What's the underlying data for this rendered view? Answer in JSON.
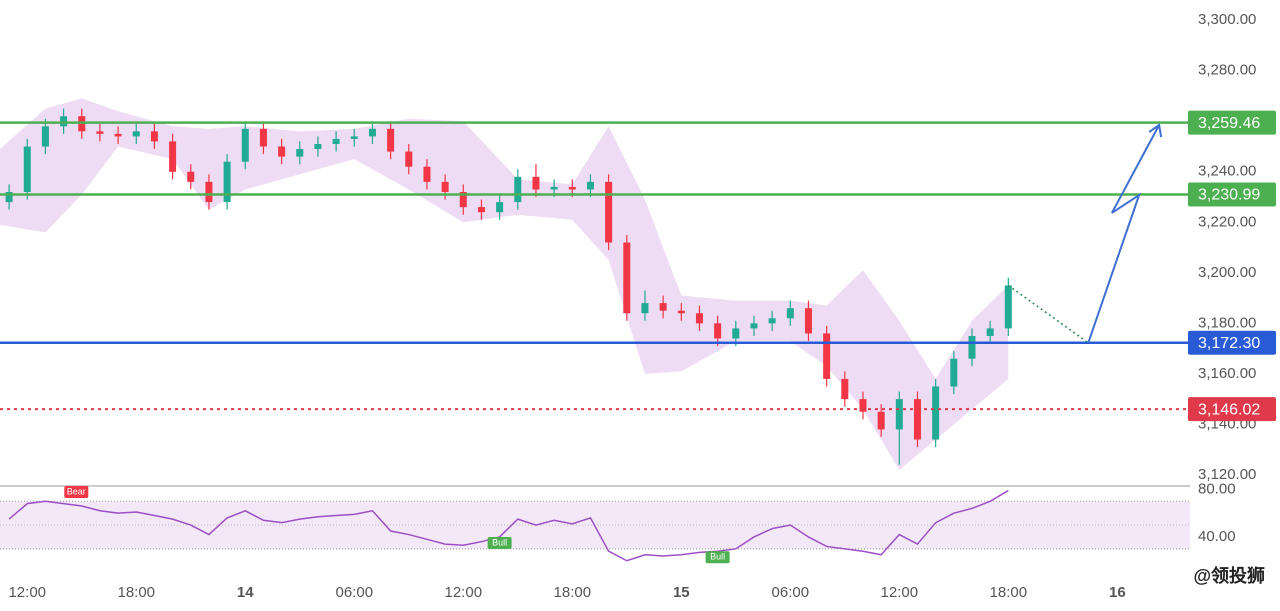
{
  "chart_data": {
    "type": "candlestick",
    "xlim": [
      10.5,
      76
    ],
    "xticks": [
      {
        "value": 12,
        "label": "12:00"
      },
      {
        "value": 18,
        "label": "18:00"
      },
      {
        "value": 24,
        "label": "14"
      },
      {
        "value": 30,
        "label": "06:00"
      },
      {
        "value": 36,
        "label": "12:00"
      },
      {
        "value": 42,
        "label": "18:00"
      },
      {
        "value": 48,
        "label": "15"
      },
      {
        "value": 54,
        "label": "06:00"
      },
      {
        "value": 60,
        "label": "12:00"
      },
      {
        "value": 66,
        "label": "18:00"
      },
      {
        "value": 72,
        "label": "16"
      }
    ],
    "ylim": [
      3116,
      3308
    ],
    "yticks": [
      {
        "value": 3120,
        "label": "3,120.00"
      },
      {
        "value": 3140,
        "label": "3,140.00"
      },
      {
        "value": 3160,
        "label": "3,160.00"
      },
      {
        "value": 3180,
        "label": "3,180.00"
      },
      {
        "value": 3200,
        "label": "3,200.00"
      },
      {
        "value": 3220,
        "label": "3,220.00"
      },
      {
        "value": 3240,
        "label": "3,240.00"
      },
      {
        "value": 3260,
        "label": "3,260.00"
      },
      {
        "value": 3280,
        "label": "3,280.00"
      },
      {
        "value": 3300,
        "label": "3,300.00"
      }
    ],
    "x": [
      11,
      12,
      13,
      14,
      15,
      16,
      17,
      18,
      19,
      20,
      21,
      22,
      23,
      24,
      25,
      26,
      27,
      28,
      29,
      30,
      31,
      32,
      33,
      34,
      35,
      36,
      37,
      38,
      39,
      40,
      41,
      42,
      43,
      44,
      45,
      46,
      47,
      48,
      49,
      50,
      51,
      52,
      53,
      54,
      55,
      56,
      57,
      58,
      59,
      60,
      61,
      62,
      63,
      64,
      65,
      66
    ],
    "open": [
      3228,
      3232,
      3250,
      3258,
      3262,
      3256,
      3255,
      3254,
      3256,
      3252,
      3240,
      3236,
      3228,
      3244,
      3257,
      3250,
      3246,
      3249,
      3251,
      3253,
      3254,
      3257,
      3248,
      3242,
      3236,
      3232,
      3226,
      3224,
      3228,
      3238,
      3233,
      3234,
      3233,
      3236,
      3212,
      3184,
      3188,
      3185,
      3184,
      3180,
      3174,
      3178,
      3180,
      3182,
      3186,
      3176,
      3158,
      3150,
      3145,
      3138,
      3150,
      3134,
      3155,
      3166,
      3175,
      3178
    ],
    "high": [
      3235,
      3253,
      3261,
      3265,
      3265,
      3259,
      3258,
      3259,
      3259,
      3255,
      3243,
      3239,
      3247,
      3260,
      3260,
      3253,
      3252,
      3254,
      3256,
      3257,
      3260,
      3260,
      3251,
      3245,
      3239,
      3235,
      3229,
      3231,
      3241,
      3243,
      3237,
      3237,
      3239,
      3239,
      3215,
      3193,
      3191,
      3188,
      3187,
      3183,
      3181,
      3183,
      3185,
      3189,
      3189,
      3179,
      3161,
      3153,
      3148,
      3153,
      3153,
      3158,
      3169,
      3178,
      3181,
      3198
    ],
    "low": [
      3225,
      3229,
      3247,
      3255,
      3253,
      3252,
      3251,
      3251,
      3249,
      3237,
      3233,
      3225,
      3225,
      3241,
      3247,
      3243,
      3243,
      3246,
      3248,
      3250,
      3251,
      3245,
      3239,
      3233,
      3229,
      3223,
      3221,
      3221,
      3225,
      3230,
      3230,
      3230,
      3230,
      3209,
      3181,
      3181,
      3182,
      3181,
      3177,
      3171,
      3171,
      3175,
      3177,
      3179,
      3173,
      3155,
      3147,
      3142,
      3135,
      3124,
      3131,
      3131,
      3152,
      3163,
      3172,
      3175
    ],
    "close": [
      3232,
      3250,
      3258,
      3262,
      3256,
      3255,
      3254,
      3256,
      3252,
      3240,
      3236,
      3228,
      3244,
      3257,
      3250,
      3246,
      3249,
      3251,
      3253,
      3254,
      3257,
      3248,
      3242,
      3236,
      3232,
      3226,
      3224,
      3228,
      3238,
      3233,
      3234,
      3233,
      3236,
      3212,
      3184,
      3188,
      3185,
      3184,
      3180,
      3174,
      3178,
      3180,
      3182,
      3186,
      3176,
      3158,
      3150,
      3145,
      3138,
      3150,
      3134,
      3155,
      3166,
      3175,
      3178,
      3195
    ],
    "up_color": "#22ab94",
    "down_color": "#f23645",
    "band": {
      "color": "#ead2f1",
      "x": [
        10.5,
        13,
        15,
        17,
        20,
        22,
        24,
        27,
        30,
        33,
        36,
        39,
        42,
        44,
        46,
        48,
        51,
        54,
        56,
        58,
        60,
        62,
        64,
        66
      ],
      "upper": [
        3249,
        3265,
        3269,
        3264,
        3258,
        3257,
        3258,
        3256,
        3257,
        3261,
        3260,
        3237,
        3235,
        3258,
        3229,
        3191,
        3189,
        3189,
        3187,
        3201,
        3181,
        3158,
        3181,
        3195
      ],
      "lower": [
        3219,
        3216,
        3231,
        3250,
        3245,
        3225,
        3233,
        3239,
        3245,
        3233,
        3220,
        3223,
        3221,
        3205,
        3160,
        3161,
        3173,
        3173,
        3163,
        3146,
        3122,
        3134,
        3146,
        3158
      ]
    },
    "levels": [
      {
        "value": 3259.46,
        "label": "3,259.46",
        "color": "#4caf50",
        "style": "solid"
      },
      {
        "value": 3230.99,
        "label": "3,230.99",
        "color": "#4caf50",
        "style": "solid"
      },
      {
        "value": 3172.3,
        "label": "3,172.30",
        "color": "#2a5bd7",
        "style": "solid"
      },
      {
        "value": 3146.02,
        "label": "3,146.02",
        "color": "#e0394a",
        "style": "dotted"
      }
    ],
    "projection": {
      "color": "#3f6fd1",
      "x": [
        66,
        70.4,
        73.2,
        71.7,
        74.3
      ],
      "y": [
        3195,
        3172.3,
        3230.8,
        3223.7,
        3258.5
      ]
    },
    "rsi": {
      "color": "#9c4fc4",
      "values": [
        55,
        68,
        70,
        68,
        66,
        62,
        60,
        61,
        58,
        55,
        50,
        42,
        56,
        62,
        54,
        52,
        55,
        57,
        58,
        59,
        62,
        45,
        42,
        38,
        34,
        33,
        36,
        40,
        55,
        50,
        54,
        51,
        56,
        28,
        20,
        25,
        24,
        25,
        27,
        28,
        30,
        40,
        47,
        50,
        40,
        32,
        30,
        28,
        25,
        42,
        34,
        52,
        60,
        64,
        70,
        79
      ],
      "ylim": [
        8,
        82
      ],
      "yticks": [
        {
          "value": 80,
          "label": "80.00"
        },
        {
          "value": 40,
          "label": "40.00"
        }
      ],
      "band": [
        30,
        70
      ],
      "midline": 50
    },
    "annotations": [
      {
        "text": "Bear",
        "x": 14.7,
        "color": "#f23645"
      },
      {
        "text": "Bull",
        "x": 38,
        "color": "#4caf50"
      },
      {
        "text": "Bull",
        "x": 50,
        "color": "#4caf50"
      }
    ],
    "watermark": "@领投狮"
  }
}
